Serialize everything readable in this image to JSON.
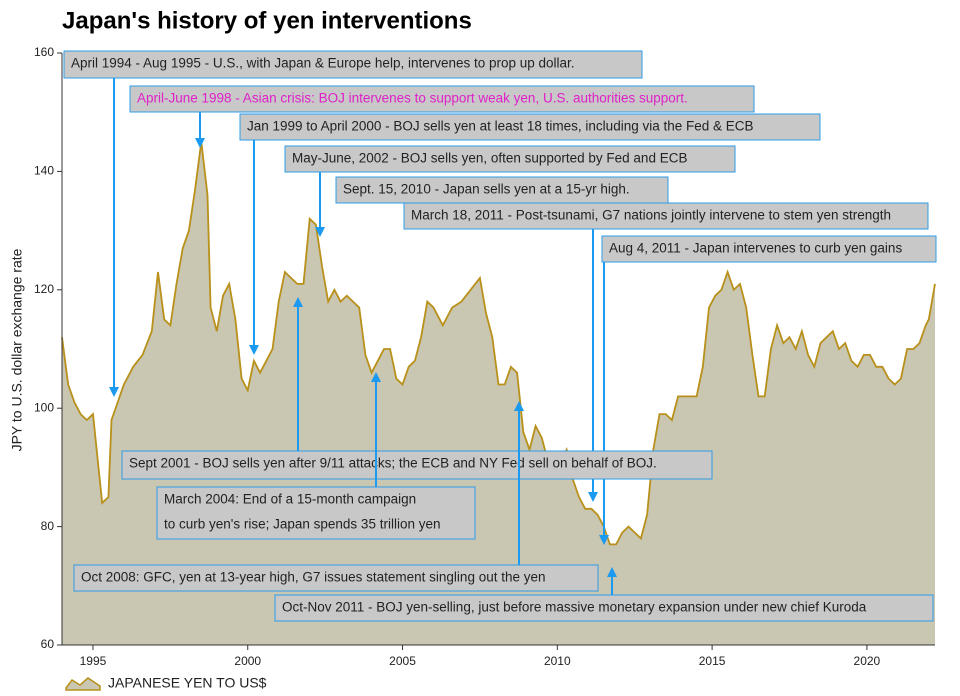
{
  "chart_data": {
    "type": "area",
    "title": "Japan's history of yen interventions",
    "y_label": "JPY to U.S. dollar exchange rate",
    "xlim": [
      1994,
      2022.2
    ],
    "xticks": [
      1995,
      2000,
      2005,
      2010,
      2015,
      2020
    ],
    "ylim": [
      60,
      160
    ],
    "yticks": [
      60,
      80,
      100,
      120,
      140,
      160
    ],
    "series": [
      {
        "name": "JAPANESE YEN TO US$",
        "color": "#b8901a",
        "fill": "#c9c6b1",
        "x": [
          1994.0,
          1994.2,
          1994.4,
          1994.6,
          1994.8,
          1995.0,
          1995.2,
          1995.3,
          1995.5,
          1995.6,
          1995.8,
          1996.0,
          1996.3,
          1996.6,
          1996.9,
          1997.1,
          1997.3,
          1997.5,
          1997.7,
          1997.9,
          1998.1,
          1998.3,
          1998.5,
          1998.7,
          1998.8,
          1999.0,
          1999.2,
          1999.4,
          1999.6,
          1999.8,
          2000.0,
          2000.2,
          2000.4,
          2000.6,
          2000.8,
          2001.0,
          2001.2,
          2001.4,
          2001.6,
          2001.8,
          2002.0,
          2002.2,
          2002.4,
          2002.6,
          2002.8,
          2003.0,
          2003.2,
          2003.4,
          2003.6,
          2003.8,
          2004.0,
          2004.2,
          2004.4,
          2004.6,
          2004.8,
          2005.0,
          2005.2,
          2005.4,
          2005.6,
          2005.8,
          2006.0,
          2006.3,
          2006.6,
          2006.9,
          2007.2,
          2007.5,
          2007.7,
          2007.9,
          2008.1,
          2008.3,
          2008.5,
          2008.7,
          2008.9,
          2009.1,
          2009.3,
          2009.5,
          2009.7,
          2009.9,
          2010.1,
          2010.3,
          2010.5,
          2010.7,
          2010.9,
          2011.1,
          2011.3,
          2011.5,
          2011.7,
          2011.9,
          2012.1,
          2012.3,
          2012.5,
          2012.7,
          2012.9,
          2013.1,
          2013.3,
          2013.5,
          2013.7,
          2013.9,
          2014.1,
          2014.3,
          2014.5,
          2014.7,
          2014.9,
          2015.1,
          2015.3,
          2015.5,
          2015.7,
          2015.9,
          2016.1,
          2016.3,
          2016.5,
          2016.7,
          2016.9,
          2017.1,
          2017.3,
          2017.5,
          2017.7,
          2017.9,
          2018.1,
          2018.3,
          2018.5,
          2018.7,
          2018.9,
          2019.1,
          2019.3,
          2019.5,
          2019.7,
          2019.9,
          2020.1,
          2020.3,
          2020.5,
          2020.7,
          2020.9,
          2021.1,
          2021.3,
          2021.5,
          2021.7,
          2021.9,
          2022.0,
          2022.2
        ],
        "values": [
          112,
          104,
          101,
          99,
          98,
          99,
          89,
          84,
          85,
          98,
          101,
          104,
          107,
          109,
          113,
          123,
          115,
          114,
          121,
          127,
          130,
          137,
          145,
          136,
          117,
          113,
          119,
          121,
          115,
          105,
          103,
          108,
          106,
          108,
          110,
          118,
          123,
          122,
          121,
          121,
          132,
          131,
          124,
          118,
          120,
          118,
          119,
          118,
          117,
          109,
          106,
          108,
          110,
          110,
          105,
          104,
          107,
          108,
          112,
          118,
          117,
          114,
          117,
          118,
          120,
          122,
          116,
          112,
          104,
          104,
          107,
          106,
          96,
          93,
          97,
          95,
          91,
          90,
          91,
          93,
          88,
          85,
          83,
          83,
          82,
          80,
          77,
          77,
          79,
          80,
          79,
          78,
          82,
          93,
          99,
          99,
          98,
          102,
          102,
          102,
          102,
          107,
          117,
          119,
          120,
          123,
          120,
          121,
          117,
          109,
          102,
          102,
          110,
          114,
          111,
          112,
          110,
          113,
          109,
          107,
          111,
          112,
          113,
          110,
          111,
          108,
          107,
          109,
          109,
          107,
          107,
          105,
          104,
          105,
          110,
          110,
          111,
          114,
          115,
          121
        ]
      }
    ],
    "annotations": [
      {
        "lines": [
          "April 1994 - Aug 1995 - U.S., with Japan & Europe help, intervenes to prop up dollar."
        ],
        "color": "#222222"
      },
      {
        "lines": [
          "April-June 1998 - Asian crisis: BOJ intervenes to support weak yen, U.S. authorities support."
        ],
        "color": "#e020c8"
      },
      {
        "lines": [
          "Jan 1999 to April 2000 - BOJ sells yen at least 18 times, including via the Fed & ECB"
        ],
        "color": "#222222"
      },
      {
        "lines": [
          "May-June, 2002 - BOJ sells yen, often supported by Fed and ECB"
        ],
        "color": "#222222"
      },
      {
        "lines": [
          "Sept. 15, 2010 - Japan sells yen at a 15-yr high."
        ],
        "color": "#222222"
      },
      {
        "lines": [
          "March 18, 2011 - Post-tsunami, G7 nations jointly intervene to stem yen strength"
        ],
        "color": "#222222"
      },
      {
        "lines": [
          "Aug 4, 2011 - Japan intervenes to curb yen gains"
        ],
        "color": "#222222"
      },
      {
        "lines": [
          "Sept 2001 - BOJ sells yen after 9/11 attacks; the ECB and NY Fed sell on behalf of BOJ."
        ],
        "color": "#222222"
      },
      {
        "lines": [
          "March 2004: End of a 15-month campaign",
          "to curb yen's rise; Japan spends 35 trillion yen"
        ],
        "color": "#222222"
      },
      {
        "lines": [
          "Oct 2008: GFC, yen at 13-year high, G7 issues statement singling out the yen"
        ],
        "color": "#222222"
      },
      {
        "lines": [
          "Oct-Nov 2011 - BOJ yen-selling, just before massive monetary expansion under new chief Kuroda"
        ],
        "color": "#222222"
      }
    ]
  }
}
